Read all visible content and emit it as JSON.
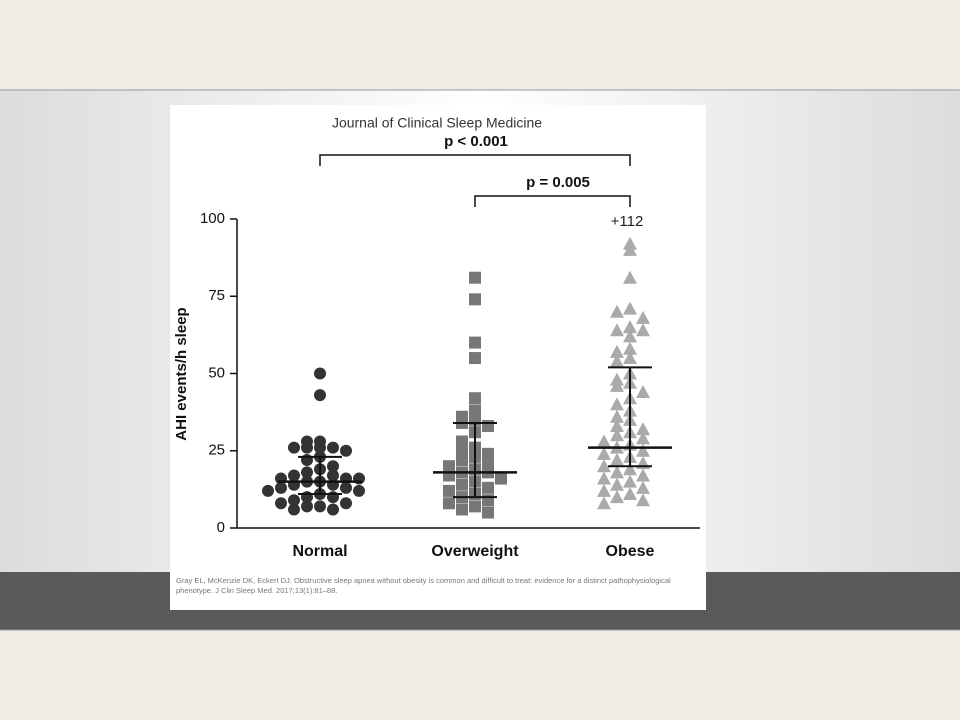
{
  "chart_data": {
    "type": "scatter",
    "header": "Journal of Clinical Sleep Medicine",
    "ylabel": "AHI events/h sleep",
    "categories": [
      "Normal",
      "Overweight",
      "Obese"
    ],
    "ylim": [
      0,
      100
    ],
    "yticks": [
      0,
      25,
      50,
      75,
      100
    ],
    "series": [
      {
        "color": "#333333",
        "marker": "circle",
        "median": 15,
        "q1": 11,
        "q3": 23,
        "values": [
          50,
          43,
          28,
          28,
          26,
          26,
          26,
          26,
          25,
          23,
          22,
          20,
          19,
          18,
          17,
          17,
          16,
          16,
          16,
          15,
          15,
          14,
          14,
          13,
          13,
          12,
          12,
          11,
          10,
          10,
          9,
          8,
          8,
          7,
          7,
          6,
          6
        ]
      },
      {
        "color": "#777777",
        "marker": "square",
        "median": 18,
        "q1": 10,
        "q3": 34,
        "values": [
          81,
          74,
          60,
          55,
          42,
          38,
          36,
          35,
          34,
          33,
          31,
          28,
          26,
          25,
          24,
          23,
          22,
          21,
          20,
          19,
          18,
          18,
          17,
          16,
          15,
          14,
          13,
          12,
          11,
          10,
          9,
          8,
          7,
          6,
          5
        ]
      },
      {
        "color": "#aaaaaa",
        "marker": "triangle",
        "median": 26,
        "q1": 20,
        "q3": 52,
        "values": [
          92,
          90,
          81,
          71,
          70,
          68,
          65,
          64,
          64,
          62,
          58,
          57,
          55,
          54,
          50,
          48,
          47,
          46,
          44,
          42,
          40,
          38,
          36,
          35,
          33,
          32,
          31,
          30,
          29,
          28,
          27,
          26,
          25,
          24,
          23,
          22,
          21,
          20,
          19,
          18,
          17,
          16,
          15,
          14,
          13,
          12,
          11,
          10,
          9,
          8
        ]
      }
    ],
    "annotations": [
      "p < 0.001",
      "p = 0.005",
      "+112"
    ],
    "citation": "Gray EL, McKenzie DK, Eckert DJ. Obstructive sleep apnea without obesity is common and difficult to treat: evidence for a distinct pathophysiological phenotype. J Clin Sleep Med. 2017;13(1):81–88."
  }
}
